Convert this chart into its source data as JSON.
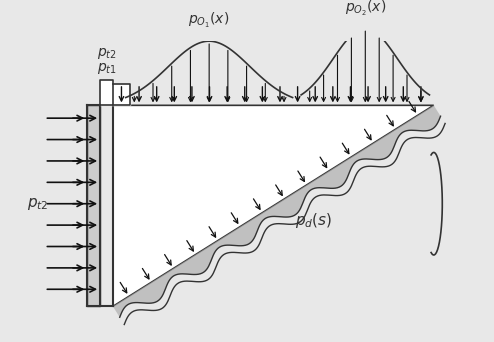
{
  "bg_color": "#e8e8e8",
  "structure_color": "#d0d0d0",
  "line_color": "#333333",
  "arrow_color": "#111111",
  "fig_width": 4.94,
  "fig_height": 3.42,
  "dpi": 100,
  "labels": {
    "pt2_left": "$p_{t2}$",
    "pt1": "$p_{t1}$",
    "pt2_top": "$p_{t2}$",
    "po1": "$p_{O_1}(x)$",
    "po2": "$p_{O_2}(x)$",
    "pd": "$p_d(s)$"
  }
}
